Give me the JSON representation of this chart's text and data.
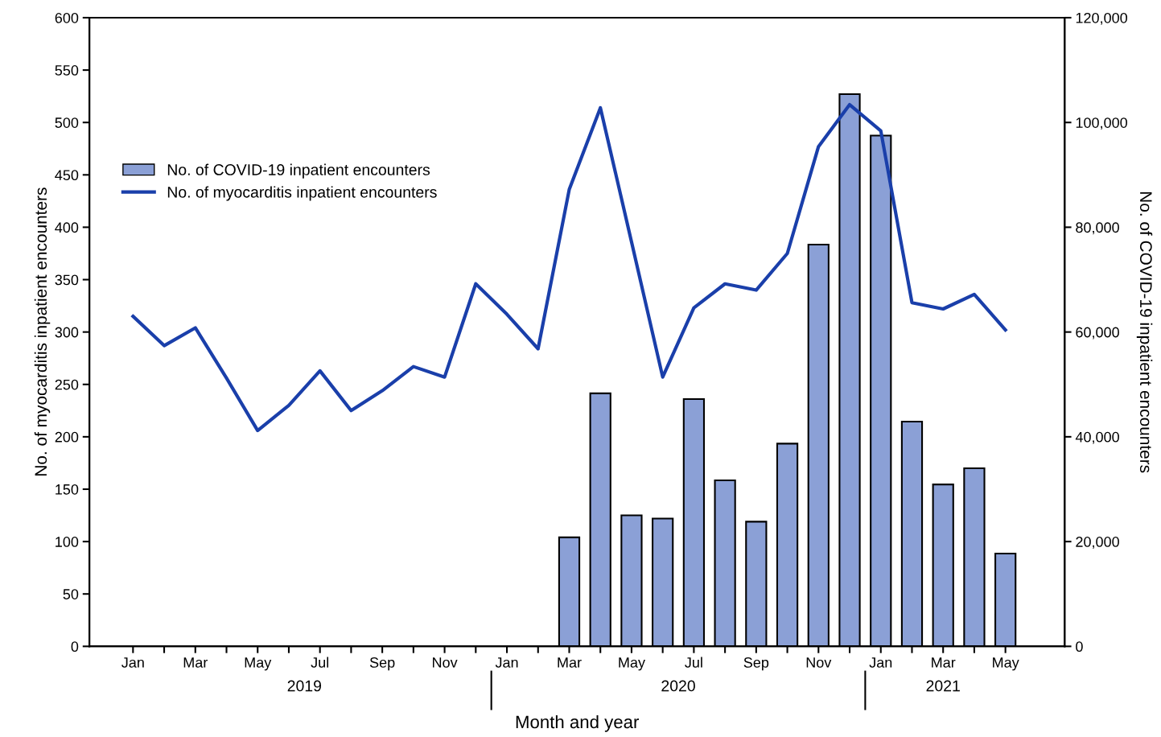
{
  "chart_data": {
    "type": "bar",
    "xlabel": "Month and year",
    "ylabel": "No. of myocarditis inpatient encounters",
    "y2label": "No. of COVID-19 inpatient encounters",
    "categories": [
      "Jan",
      null,
      "Mar",
      null,
      "May",
      null,
      "Jul",
      null,
      "Sep",
      null,
      "Nov",
      null,
      "Jan",
      null,
      "Mar",
      null,
      "May",
      null,
      "Jul",
      null,
      "Sep",
      null,
      "Nov",
      null,
      "Jan",
      null,
      "Mar",
      null,
      "May"
    ],
    "annotations": [
      "2019",
      "2020",
      "2021"
    ],
    "series": [
      {
        "name": "No. of COVID-19 inpatient encounters",
        "axis": "y2",
        "color": "#8ba0d6",
        "values": [
          null,
          null,
          null,
          null,
          null,
          null,
          null,
          null,
          null,
          null,
          null,
          null,
          null,
          null,
          20800,
          48300,
          25000,
          24400,
          47200,
          31700,
          23800,
          38700,
          76700,
          105400,
          97500,
          42900,
          30900,
          34000,
          17700
        ]
      },
      {
        "name": "No. of myocarditis inpatient encounters",
        "type": "line",
        "axis": "y",
        "color": "#1a3faa",
        "values": [
          315,
          287,
          304,
          256,
          206,
          230,
          263,
          225,
          244,
          267,
          257,
          346,
          317,
          284,
          436,
          514,
          386,
          257,
          323,
          346,
          340,
          375,
          477,
          517,
          492,
          328,
          322,
          336,
          302
        ]
      }
    ],
    "ylim": [
      0,
      600
    ],
    "yticks": [
      0,
      50,
      100,
      150,
      200,
      250,
      300,
      350,
      400,
      450,
      500,
      550,
      600
    ],
    "y2lim": [
      0,
      120000
    ],
    "y2ticks": [
      0,
      {
        "value": 20000,
        "label": "20,000"
      },
      {
        "value": 40000,
        "label": "40,000"
      },
      {
        "value": 60000,
        "label": "60,000"
      },
      {
        "value": 80000,
        "label": "80,000"
      },
      {
        "value": 100000,
        "label": "100,000"
      },
      {
        "value": 120000,
        "label": "120,000"
      }
    ],
    "grid": false,
    "legend": "top left",
    "marker": "none",
    "line_style": "solid"
  }
}
